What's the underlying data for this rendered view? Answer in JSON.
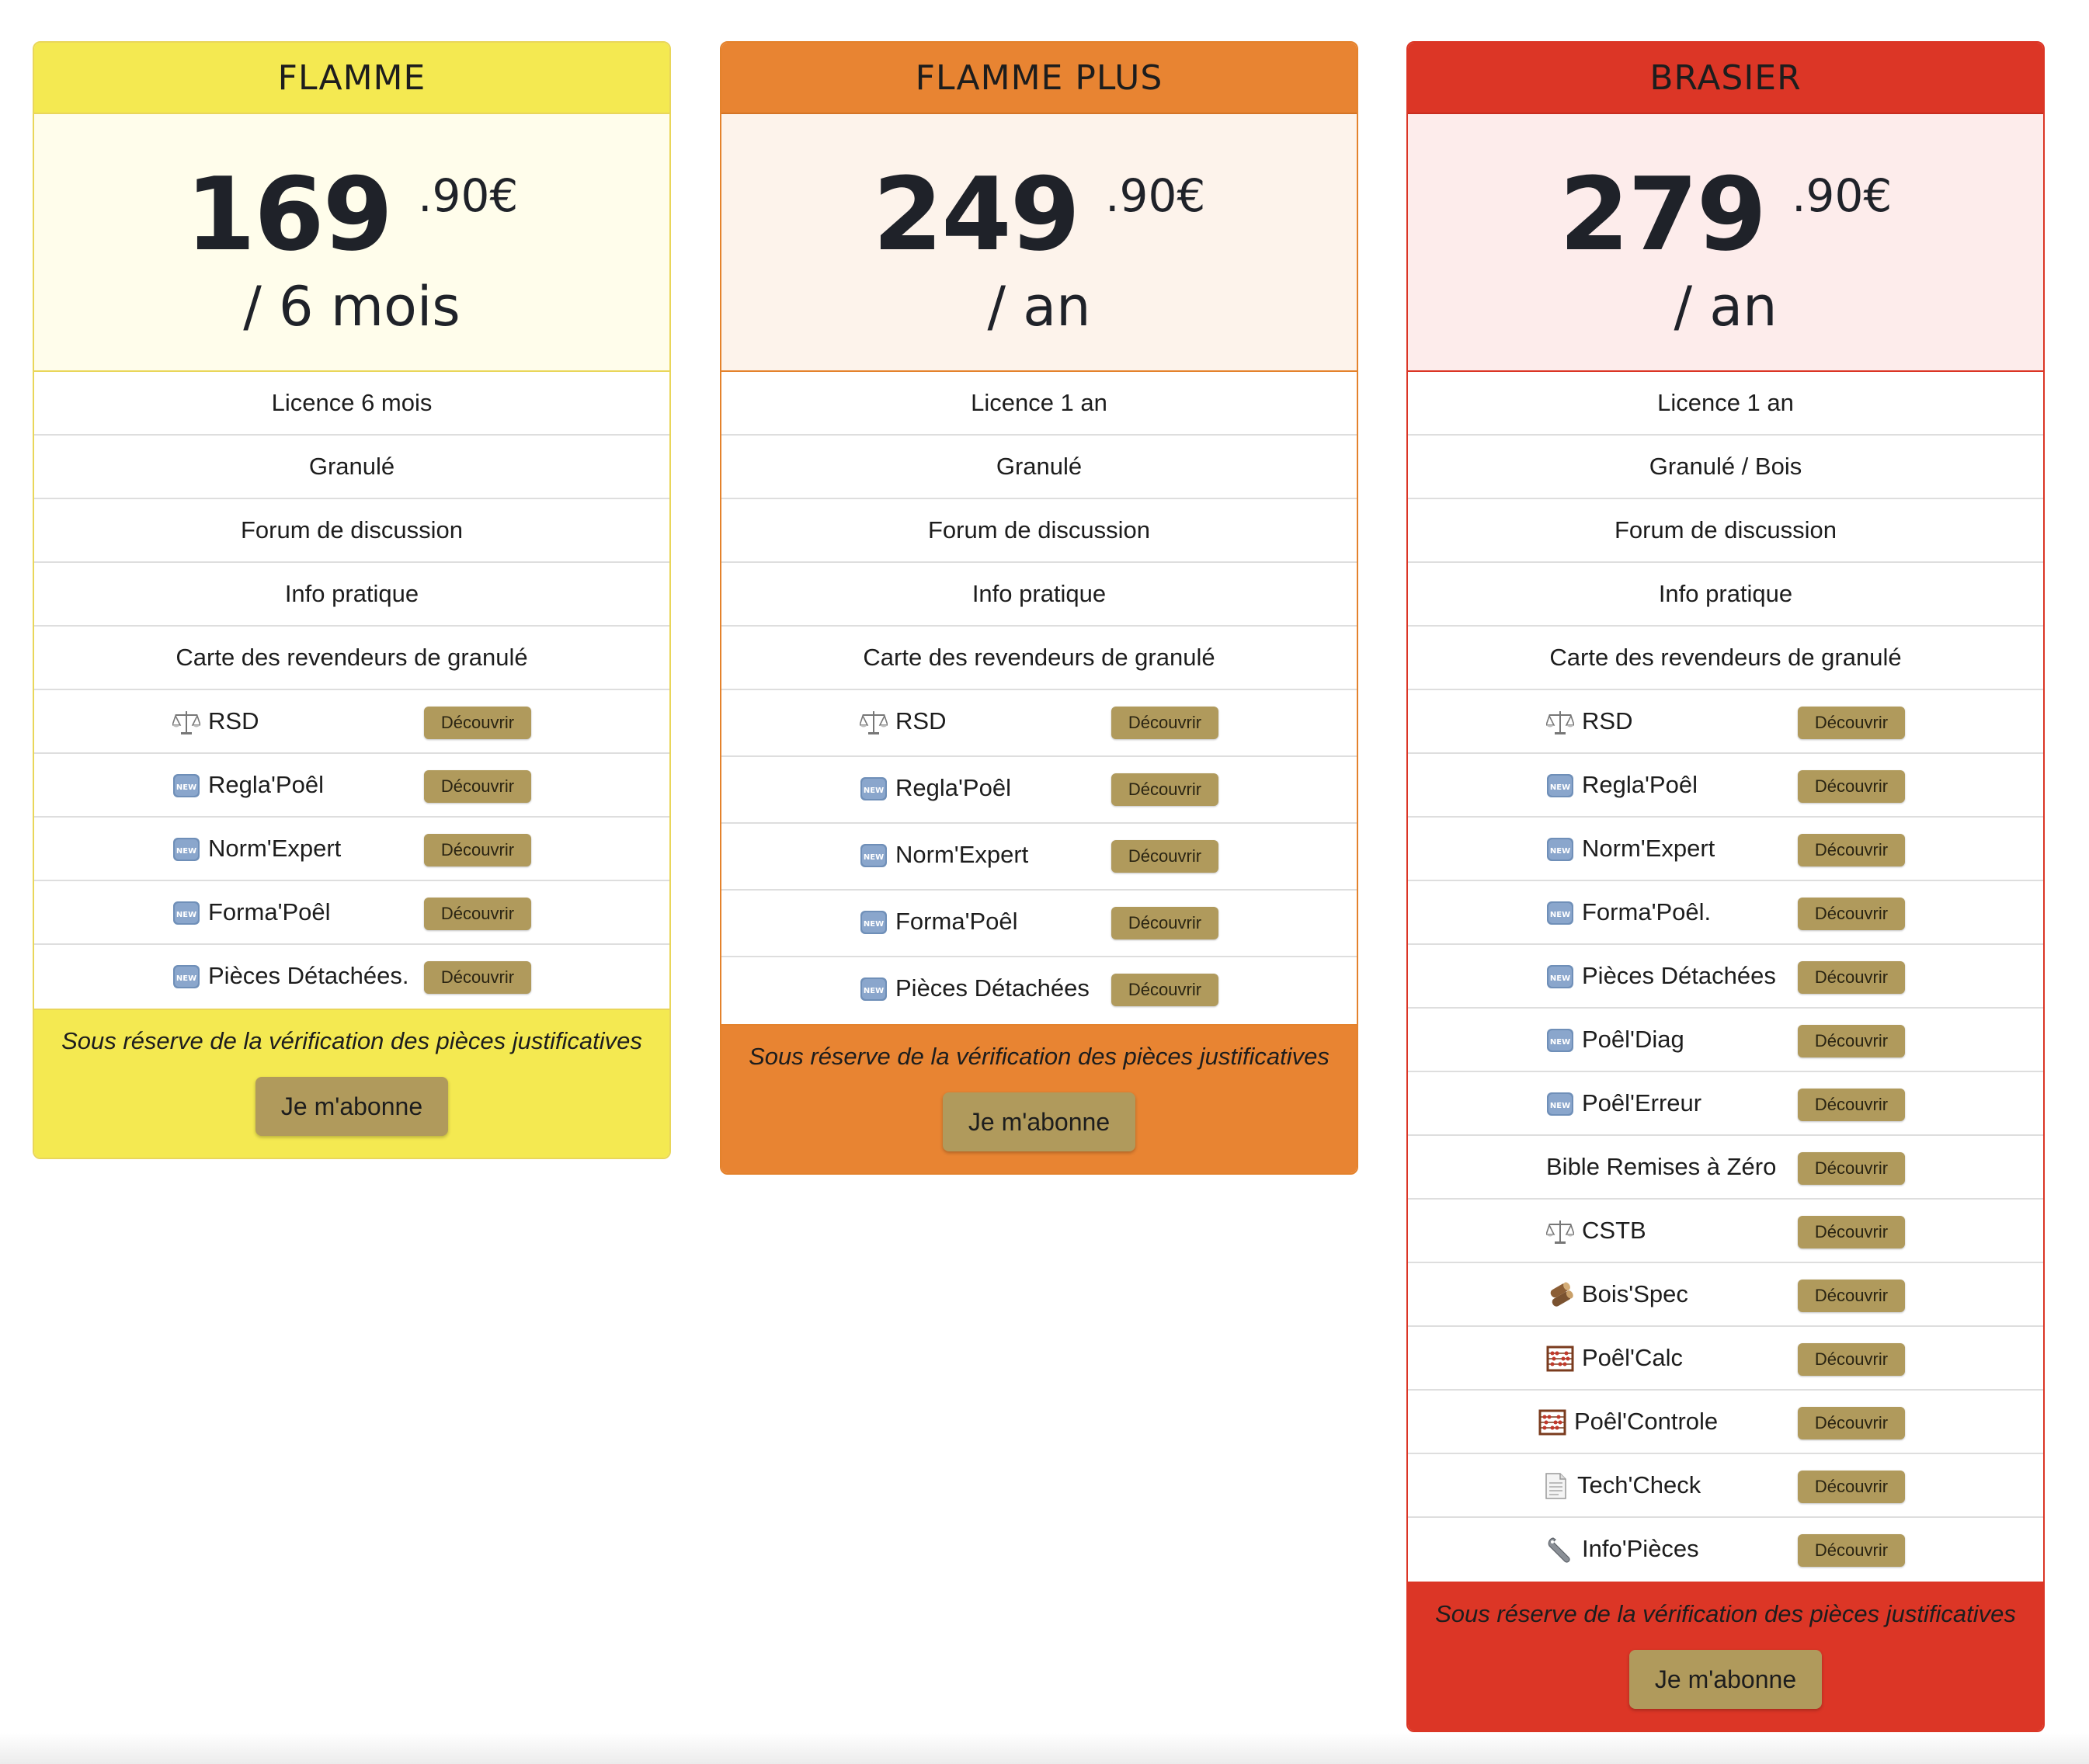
{
  "colors": {
    "flamme": "#f4e951",
    "flamme_plus": "#e88432",
    "brasier": "#dc3626",
    "button": "#b09a5c"
  },
  "plans": [
    {
      "name": "FLAMME",
      "price": "169",
      "cents": ".90€",
      "period": "/ 6 mois",
      "features": [
        "Licence 6 mois",
        "Granulé",
        "Forum de discussion",
        "Info pratique",
        "Carte des revendeurs de granulé"
      ],
      "tools": [
        {
          "icon": "scales-icon",
          "label": "RSD",
          "action": "Découvrir"
        },
        {
          "icon": "new-badge-icon",
          "label": "Regla'Poêl",
          "action": "Découvrir"
        },
        {
          "icon": "new-badge-icon",
          "label": "Norm'Expert",
          "action": "Découvrir"
        },
        {
          "icon": "new-badge-icon",
          "label": "Forma'Poêl",
          "action": "Découvrir"
        },
        {
          "icon": "new-badge-icon",
          "label": "Pièces Détachées.",
          "action": "Découvrir"
        }
      ],
      "notice": "Sous réserve de la vérification des pièces justificatives",
      "cta": "Je m'abonne"
    },
    {
      "name": "FLAMME PLUS",
      "price": "249",
      "cents": ".90€",
      "period": "/ an",
      "features": [
        "Licence 1 an",
        "Granulé",
        "Forum de discussion",
        "Info pratique",
        "Carte des revendeurs de granulé"
      ],
      "tools": [
        {
          "icon": "scales-icon",
          "label": "RSD",
          "action": "Découvrir"
        },
        {
          "icon": "new-badge-icon",
          "label": "Regla'Poêl",
          "action": "Découvrir"
        },
        {
          "icon": "new-badge-icon",
          "label": "Norm'Expert",
          "action": "Découvrir"
        },
        {
          "icon": "new-badge-icon",
          "label": "Forma'Poêl",
          "action": "Découvrir"
        },
        {
          "icon": "new-badge-icon",
          "label": "Pièces Détachées",
          "action": "Découvrir"
        }
      ],
      "notice": "Sous réserve de la vérification des pièces justificatives",
      "cta": "Je m'abonne"
    },
    {
      "name": "BRASIER",
      "price": "279",
      "cents": ".90€",
      "period": "/ an",
      "features": [
        "Licence 1 an",
        "Granulé / Bois",
        "Forum de discussion",
        "Info pratique",
        "Carte des revendeurs de granulé"
      ],
      "tools": [
        {
          "icon": "scales-icon",
          "label": "RSD",
          "action": "Découvrir"
        },
        {
          "icon": "new-badge-icon",
          "label": "Regla'Poêl",
          "action": "Découvrir"
        },
        {
          "icon": "new-badge-icon",
          "label": "Norm'Expert",
          "action": "Découvrir"
        },
        {
          "icon": "new-badge-icon",
          "label": "Forma'Poêl.",
          "action": "Découvrir"
        },
        {
          "icon": "new-badge-icon",
          "label": "Pièces Détachées",
          "action": "Découvrir"
        },
        {
          "icon": "new-badge-icon",
          "label": "Poêl'Diag",
          "action": "Découvrir"
        },
        {
          "icon": "new-badge-icon",
          "label": "Poêl'Erreur",
          "action": "Découvrir"
        },
        {
          "icon": "",
          "label": "Bible Remises à Zéro",
          "action": "Découvrir"
        },
        {
          "icon": "scales-icon",
          "label": "CSTB",
          "action": "Découvrir"
        },
        {
          "icon": "wood-logs-icon",
          "label": "Bois'Spec",
          "action": "Découvrir"
        },
        {
          "icon": "abacus-icon",
          "label": "Poêl'Calc",
          "action": "Découvrir"
        },
        {
          "icon": "abacus-icon",
          "label": "Poêl'Controle",
          "action": "Découvrir"
        },
        {
          "icon": "document-icon",
          "label": "Tech'Check",
          "action": "Découvrir"
        },
        {
          "icon": "wrench-icon",
          "label": "Info'Pièces",
          "action": "Découvrir"
        }
      ],
      "notice": "Sous réserve de la vérification des pièces justificatives",
      "cta": "Je m'abonne"
    }
  ]
}
